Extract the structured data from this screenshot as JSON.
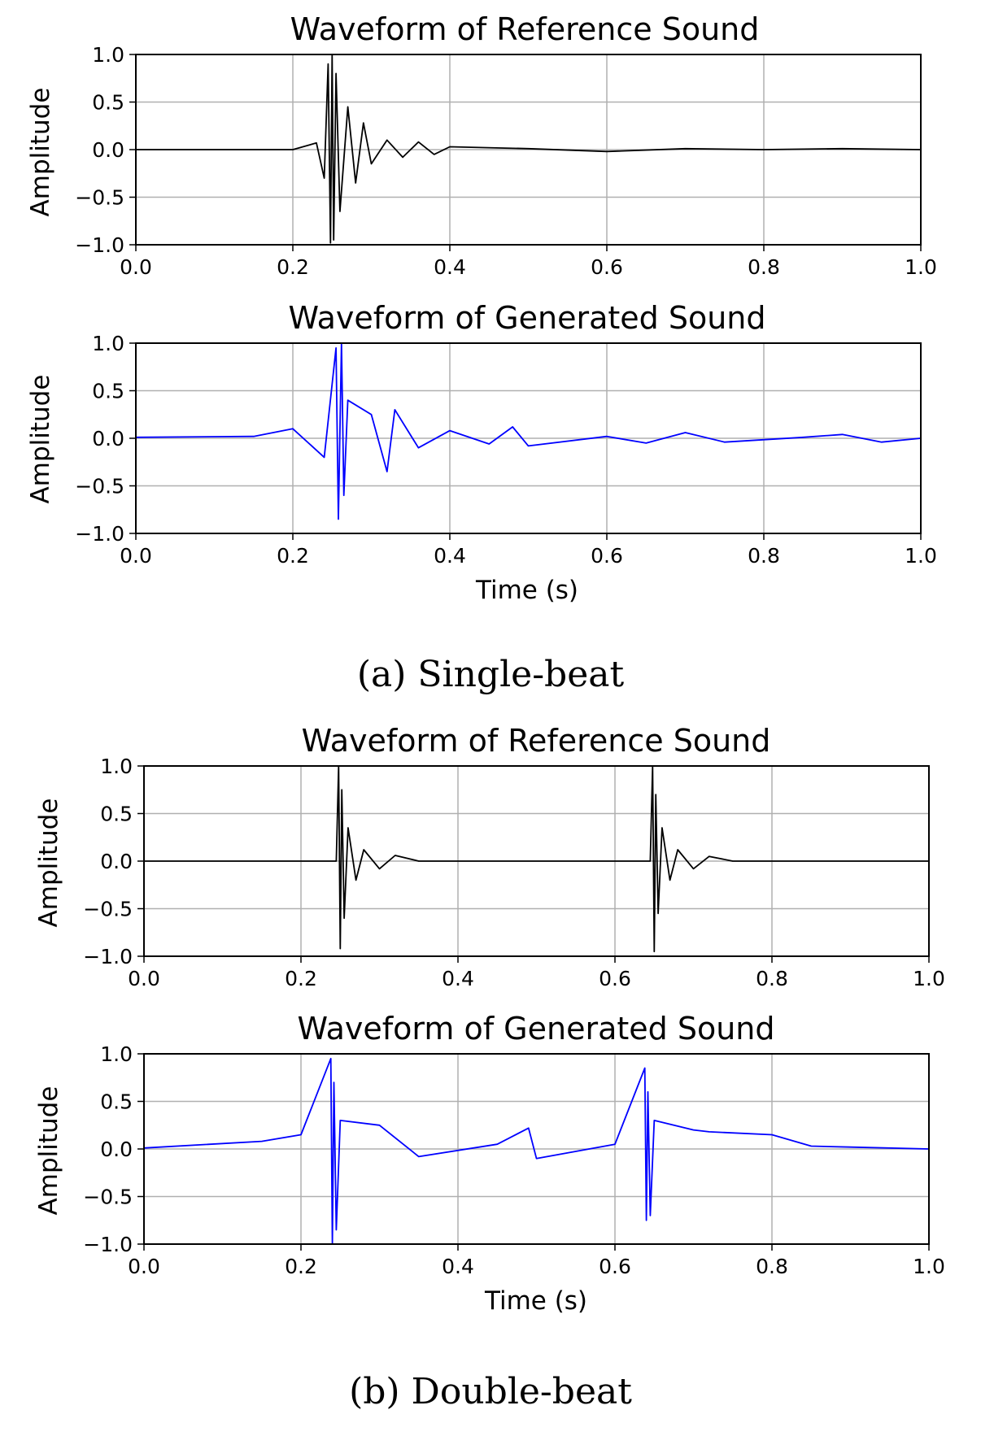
{
  "captions": {
    "a": "(a) Single-beat",
    "b": "(b) Double-beat"
  },
  "colors": {
    "reference": "#000000",
    "generated": "#0000ff",
    "grid": "#b0b0b0"
  },
  "chart_data": [
    {
      "type": "line",
      "title": "Waveform of Reference Sound",
      "xlabel": "",
      "ylabel": "Amplitude",
      "xlim": [
        0.0,
        1.0
      ],
      "ylim": [
        -1.0,
        1.0
      ],
      "xticks": [
        "0.0",
        "0.2",
        "0.4",
        "0.6",
        "0.8",
        "1.0"
      ],
      "yticks": [
        "1.0",
        "0.5",
        "0.0",
        "−0.5",
        "−1.0"
      ],
      "grid": true,
      "series": [
        {
          "color": "#000000",
          "x": [
            0.0,
            0.2,
            0.23,
            0.24,
            0.245,
            0.248,
            0.25,
            0.252,
            0.255,
            0.26,
            0.27,
            0.28,
            0.29,
            0.3,
            0.32,
            0.34,
            0.36,
            0.38,
            0.4,
            0.5,
            0.6,
            0.7,
            0.8,
            0.9,
            1.0
          ],
          "y": [
            0.0,
            0.0,
            0.07,
            -0.3,
            0.9,
            -0.98,
            1.0,
            -0.95,
            0.8,
            -0.65,
            0.45,
            -0.35,
            0.28,
            -0.15,
            0.1,
            -0.08,
            0.08,
            -0.05,
            0.03,
            0.01,
            -0.02,
            0.01,
            0.0,
            0.01,
            0.0
          ]
        }
      ]
    },
    {
      "type": "line",
      "title": "Waveform of Generated Sound",
      "xlabel": "Time (s)",
      "ylabel": "Amplitude",
      "xlim": [
        0.0,
        1.0
      ],
      "ylim": [
        -1.0,
        1.0
      ],
      "xticks": [
        "0.0",
        "0.2",
        "0.4",
        "0.6",
        "0.8",
        "1.0"
      ],
      "yticks": [
        "1.0",
        "0.5",
        "0.0",
        "−0.5",
        "−1.0"
      ],
      "grid": true,
      "series": [
        {
          "color": "#0000ff",
          "x": [
            0.0,
            0.15,
            0.2,
            0.24,
            0.255,
            0.258,
            0.262,
            0.265,
            0.27,
            0.3,
            0.32,
            0.33,
            0.36,
            0.4,
            0.45,
            0.48,
            0.5,
            0.6,
            0.65,
            0.7,
            0.75,
            0.85,
            0.9,
            0.95,
            1.0
          ],
          "y": [
            0.01,
            0.02,
            0.1,
            -0.2,
            0.95,
            -0.85,
            1.0,
            -0.6,
            0.4,
            0.25,
            -0.35,
            0.3,
            -0.1,
            0.08,
            -0.06,
            0.12,
            -0.08,
            0.02,
            -0.05,
            0.06,
            -0.04,
            0.01,
            0.04,
            -0.04,
            0.0
          ]
        }
      ]
    },
    {
      "type": "line",
      "title": "Waveform of Reference Sound",
      "xlabel": "",
      "ylabel": "Amplitude",
      "xlim": [
        0.0,
        1.0
      ],
      "ylim": [
        -1.0,
        1.0
      ],
      "xticks": [
        "0.0",
        "0.2",
        "0.4",
        "0.6",
        "0.8",
        "1.0"
      ],
      "yticks": [
        "1.0",
        "0.5",
        "0.0",
        "−0.5",
        "−1.0"
      ],
      "grid": true,
      "series": [
        {
          "color": "#000000",
          "x": [
            0.0,
            0.245,
            0.248,
            0.25,
            0.252,
            0.255,
            0.26,
            0.27,
            0.28,
            0.3,
            0.32,
            0.35,
            0.645,
            0.648,
            0.65,
            0.652,
            0.655,
            0.66,
            0.67,
            0.68,
            0.7,
            0.72,
            0.75,
            1.0
          ],
          "y": [
            0.0,
            0.0,
            1.0,
            -0.92,
            0.75,
            -0.6,
            0.35,
            -0.2,
            0.12,
            -0.08,
            0.06,
            0.0,
            0.0,
            1.0,
            -0.95,
            0.7,
            -0.55,
            0.35,
            -0.2,
            0.12,
            -0.08,
            0.05,
            0.0,
            0.0
          ]
        }
      ]
    },
    {
      "type": "line",
      "title": "Waveform of Generated Sound",
      "xlabel": "Time (s)",
      "ylabel": "Amplitude",
      "xlim": [
        0.0,
        1.0
      ],
      "ylim": [
        -1.0,
        1.0
      ],
      "xticks": [
        "0.0",
        "0.2",
        "0.4",
        "0.6",
        "0.8",
        "1.0"
      ],
      "yticks": [
        "1.0",
        "0.5",
        "0.0",
        "−0.5",
        "−1.0"
      ],
      "grid": true,
      "series": [
        {
          "color": "#0000ff",
          "x": [
            0.0,
            0.15,
            0.2,
            0.238,
            0.24,
            0.242,
            0.245,
            0.25,
            0.3,
            0.35,
            0.45,
            0.49,
            0.5,
            0.6,
            0.638,
            0.64,
            0.642,
            0.645,
            0.65,
            0.7,
            0.72,
            0.8,
            0.85,
            0.9,
            1.0
          ],
          "y": [
            0.01,
            0.08,
            0.15,
            0.95,
            -1.0,
            0.7,
            -0.85,
            0.3,
            0.25,
            -0.08,
            0.05,
            0.22,
            -0.1,
            0.05,
            0.85,
            -0.75,
            0.6,
            -0.7,
            0.3,
            0.2,
            0.18,
            0.15,
            0.03,
            0.02,
            0.0
          ]
        }
      ]
    }
  ]
}
